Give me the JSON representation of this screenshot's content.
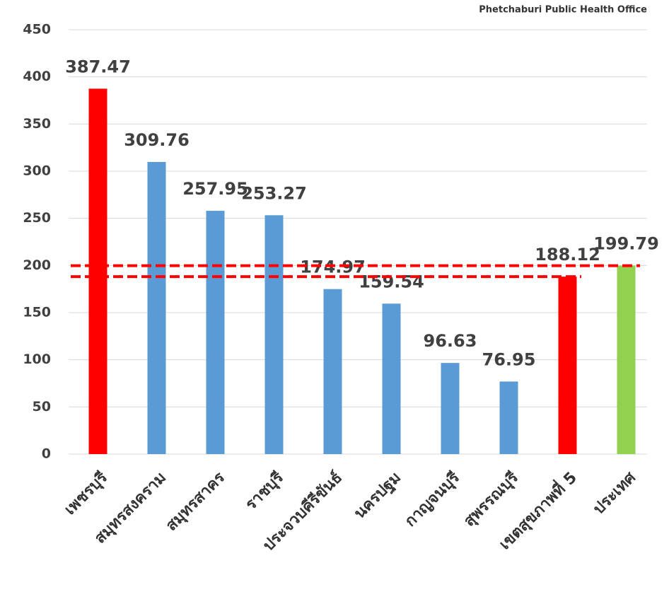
{
  "header": "Phetchaburi Public Health Office",
  "chart_data": {
    "type": "bar",
    "categories": [
      "เพชรบุรี",
      "สมุทรสงคราม",
      "สมุทรสาคร",
      "ราชบุรี",
      "ประจวบคีรีขันธ์",
      "นครปฐม",
      "กาญจนบุรี",
      "สุพรรณบุรี",
      "เขตสุขภาพที่ 5",
      "ประเทศ"
    ],
    "values": [
      387.47,
      309.76,
      257.95,
      253.27,
      174.97,
      159.54,
      96.63,
      76.95,
      188.12,
      199.79
    ],
    "colors": [
      "#ff0000",
      "#5b9bd5",
      "#5b9bd5",
      "#5b9bd5",
      "#5b9bd5",
      "#5b9bd5",
      "#5b9bd5",
      "#5b9bd5",
      "#ff0000",
      "#92d050"
    ],
    "reference_lines": [
      199.79,
      188.12
    ],
    "reference_color": "#ff0000",
    "ylim": [
      0,
      450
    ],
    "yticks": [
      0,
      50,
      100,
      150,
      200,
      250,
      300,
      350,
      400,
      450
    ],
    "grid": true
  }
}
